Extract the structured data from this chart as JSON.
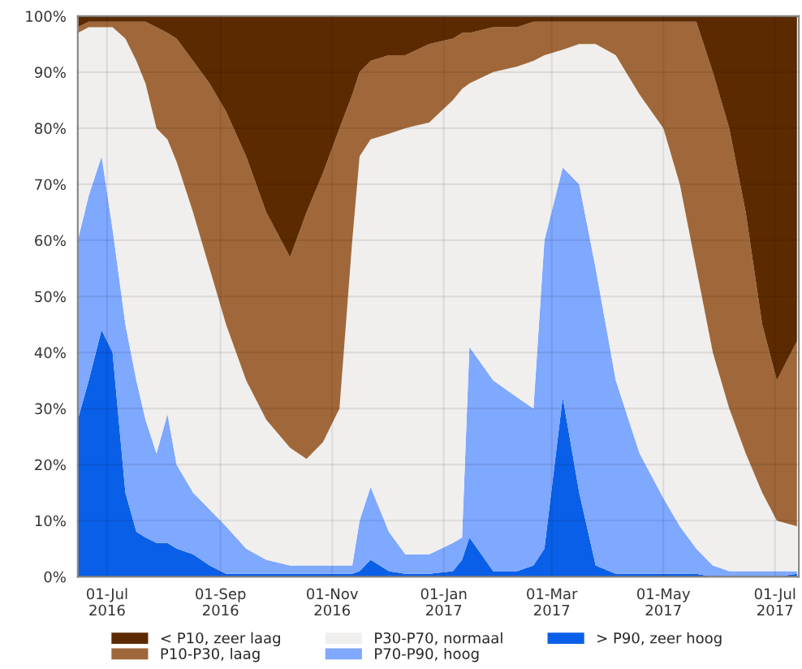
{
  "chart_data": {
    "type": "area",
    "stacked": true,
    "x": [
      "2016-06-15",
      "2016-06-21",
      "2016-06-28",
      "2016-07-04",
      "2016-07-11",
      "2016-07-17",
      "2016-07-22",
      "2016-07-28",
      "2016-08-03",
      "2016-08-08",
      "2016-08-17",
      "2016-08-26",
      "2016-09-04",
      "2016-09-15",
      "2016-09-26",
      "2016-10-09",
      "2016-10-18",
      "2016-10-27",
      "2016-11-05",
      "2016-11-12",
      "2016-11-16",
      "2016-11-22",
      "2016-12-02",
      "2016-12-11",
      "2016-12-24",
      "2017-01-06",
      "2017-01-11",
      "2017-01-15",
      "2017-01-28",
      "2017-02-10",
      "2017-02-19",
      "2017-02-25",
      "2017-03-07",
      "2017-03-16",
      "2017-03-25",
      "2017-04-05",
      "2017-04-18",
      "2017-05-01",
      "2017-05-10",
      "2017-05-19",
      "2017-05-28",
      "2017-06-06",
      "2017-06-15",
      "2017-06-24",
      "2017-07-02",
      "2017-07-13"
    ],
    "series": [
      {
        "name": "> P90, zeer hoog",
        "color": "#0a5fe8",
        "values": [
          28,
          35,
          44,
          40,
          15,
          8,
          7,
          6,
          6,
          5,
          4,
          2,
          0.5,
          0.5,
          0.5,
          0.5,
          0.5,
          0.5,
          0.5,
          0.5,
          1,
          3,
          1,
          0.5,
          0.5,
          1,
          3,
          7,
          1,
          1,
          2,
          5,
          32,
          15,
          2,
          0.5,
          0.5,
          0.5,
          0.5,
          0.5,
          0,
          0,
          0,
          0,
          0,
          0.5
        ]
      },
      {
        "name": "P70-P90, hoog",
        "color": "#7fa8ff",
        "values": [
          32,
          33,
          31,
          22,
          30,
          27,
          21,
          16,
          23,
          15,
          11,
          10,
          8.5,
          4.5,
          2.5,
          1.5,
          1.5,
          1.5,
          1.5,
          1.5,
          9,
          13,
          7,
          3.5,
          3.5,
          5,
          4,
          34,
          34,
          31,
          28,
          55,
          41,
          55,
          53,
          34.5,
          21.5,
          13.5,
          8.5,
          4.5,
          2,
          1,
          1,
          1,
          1,
          0.5
        ]
      },
      {
        "name": "P30-P70, normaal",
        "color": "#f0efee",
        "values": [
          37,
          30,
          23,
          36,
          51,
          57,
          60,
          58,
          49,
          54,
          50,
          43,
          36,
          30,
          25,
          21,
          19,
          22,
          28,
          58,
          65,
          62,
          71,
          76,
          77,
          79,
          80,
          47,
          55,
          59,
          62,
          33,
          21,
          25,
          40,
          58,
          64,
          66,
          61,
          50,
          38,
          29,
          21,
          14,
          9,
          8
        ]
      },
      {
        "name": "P10-P30, laag",
        "color": "#a0683a",
        "values": [
          1,
          1,
          1,
          1,
          3,
          7,
          11,
          18,
          19,
          22,
          27,
          33,
          38,
          40,
          37,
          34,
          44,
          48,
          50,
          26,
          15,
          14,
          14,
          13,
          14,
          11,
          10,
          9,
          8,
          7,
          7,
          6,
          5,
          4,
          4,
          6,
          13,
          19,
          29,
          44,
          50,
          50,
          43,
          30,
          25,
          33
        ]
      },
      {
        "name": "< P10, zeer laag",
        "color": "#5c2a00",
        "values": [
          2,
          1,
          1,
          1,
          1,
          1,
          1,
          2,
          3,
          4,
          8,
          12,
          17,
          25,
          35,
          43,
          35,
          28,
          20,
          14,
          10,
          8,
          7,
          7,
          5,
          4,
          3,
          3,
          2,
          2,
          1,
          1,
          1,
          1,
          1,
          1,
          1,
          1,
          1,
          1,
          10,
          20,
          35,
          55,
          65,
          58
        ]
      }
    ],
    "xlim": [
      "2016-06-15",
      "2017-07-14"
    ],
    "xticks": [
      {
        "value": "2016-07-01",
        "label": "01-Jul\n2016"
      },
      {
        "value": "2016-09-01",
        "label": "01-Sep\n2016"
      },
      {
        "value": "2016-11-01",
        "label": "01-Nov\n2016"
      },
      {
        "value": "2017-01-01",
        "label": "01-Jan\n2017"
      },
      {
        "value": "2017-03-01",
        "label": "01-Mar\n2017"
      },
      {
        "value": "2017-05-01",
        "label": "01-May\n2017"
      },
      {
        "value": "2017-07-01",
        "label": "01-Jul\n2017"
      }
    ],
    "ylim": [
      0,
      100
    ],
    "yticks": [
      {
        "value": 0,
        "label": "0%"
      },
      {
        "value": 10,
        "label": "10%"
      },
      {
        "value": 20,
        "label": "20%"
      },
      {
        "value": 30,
        "label": "30%"
      },
      {
        "value": 40,
        "label": "40%"
      },
      {
        "value": 50,
        "label": "50%"
      },
      {
        "value": 60,
        "label": "60%"
      },
      {
        "value": 70,
        "label": "70%"
      },
      {
        "value": 80,
        "label": "80%"
      },
      {
        "value": 90,
        "label": "90%"
      },
      {
        "value": 100,
        "label": "100%"
      }
    ],
    "grid": true,
    "legend": "bottom"
  }
}
